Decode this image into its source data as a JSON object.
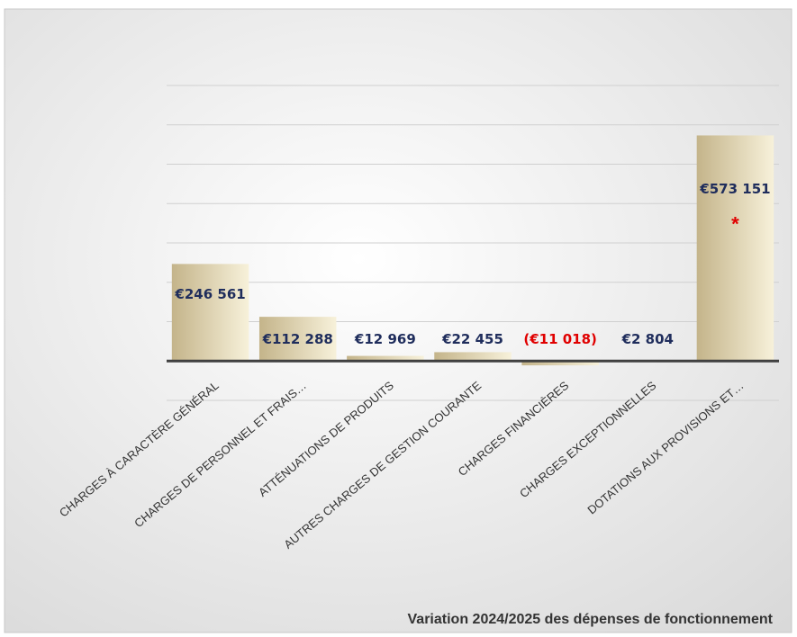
{
  "chart_data": {
    "type": "bar",
    "title": "Variation 2024/2025 des dépenses de fonctionnement",
    "categories": [
      "CHARGES À CARACTÈRE GÉNÉRAL",
      "CHARGES DE PERSONNEL ET FRAIS…",
      "ATTÉNUATIONS DE PRODUITS",
      "AUTRES CHARGES DE GESTION COURANTE",
      "CHARGES FINANCIÈRES",
      "CHARGES EXCEPTIONNELLES",
      "DOTATIONS AUX PROVISIONS ET…"
    ],
    "values": [
      246561,
      112288,
      12969,
      22455,
      -11018,
      2804,
      573151
    ],
    "value_labels": [
      "€246 561",
      "€112 288",
      "€12 969",
      "€22 455",
      "(€11 018)",
      "€2 804",
      "€573 151"
    ],
    "annotation": "*",
    "color": "#c4b48a",
    "label_color": "#1f2d5c",
    "negative_label_color": "#e00000",
    "ylim": [
      -100000,
      700000
    ],
    "yticks": [
      -100000,
      0,
      100000,
      200000,
      300000,
      400000,
      500000,
      600000,
      700000
    ],
    "grid": true
  }
}
